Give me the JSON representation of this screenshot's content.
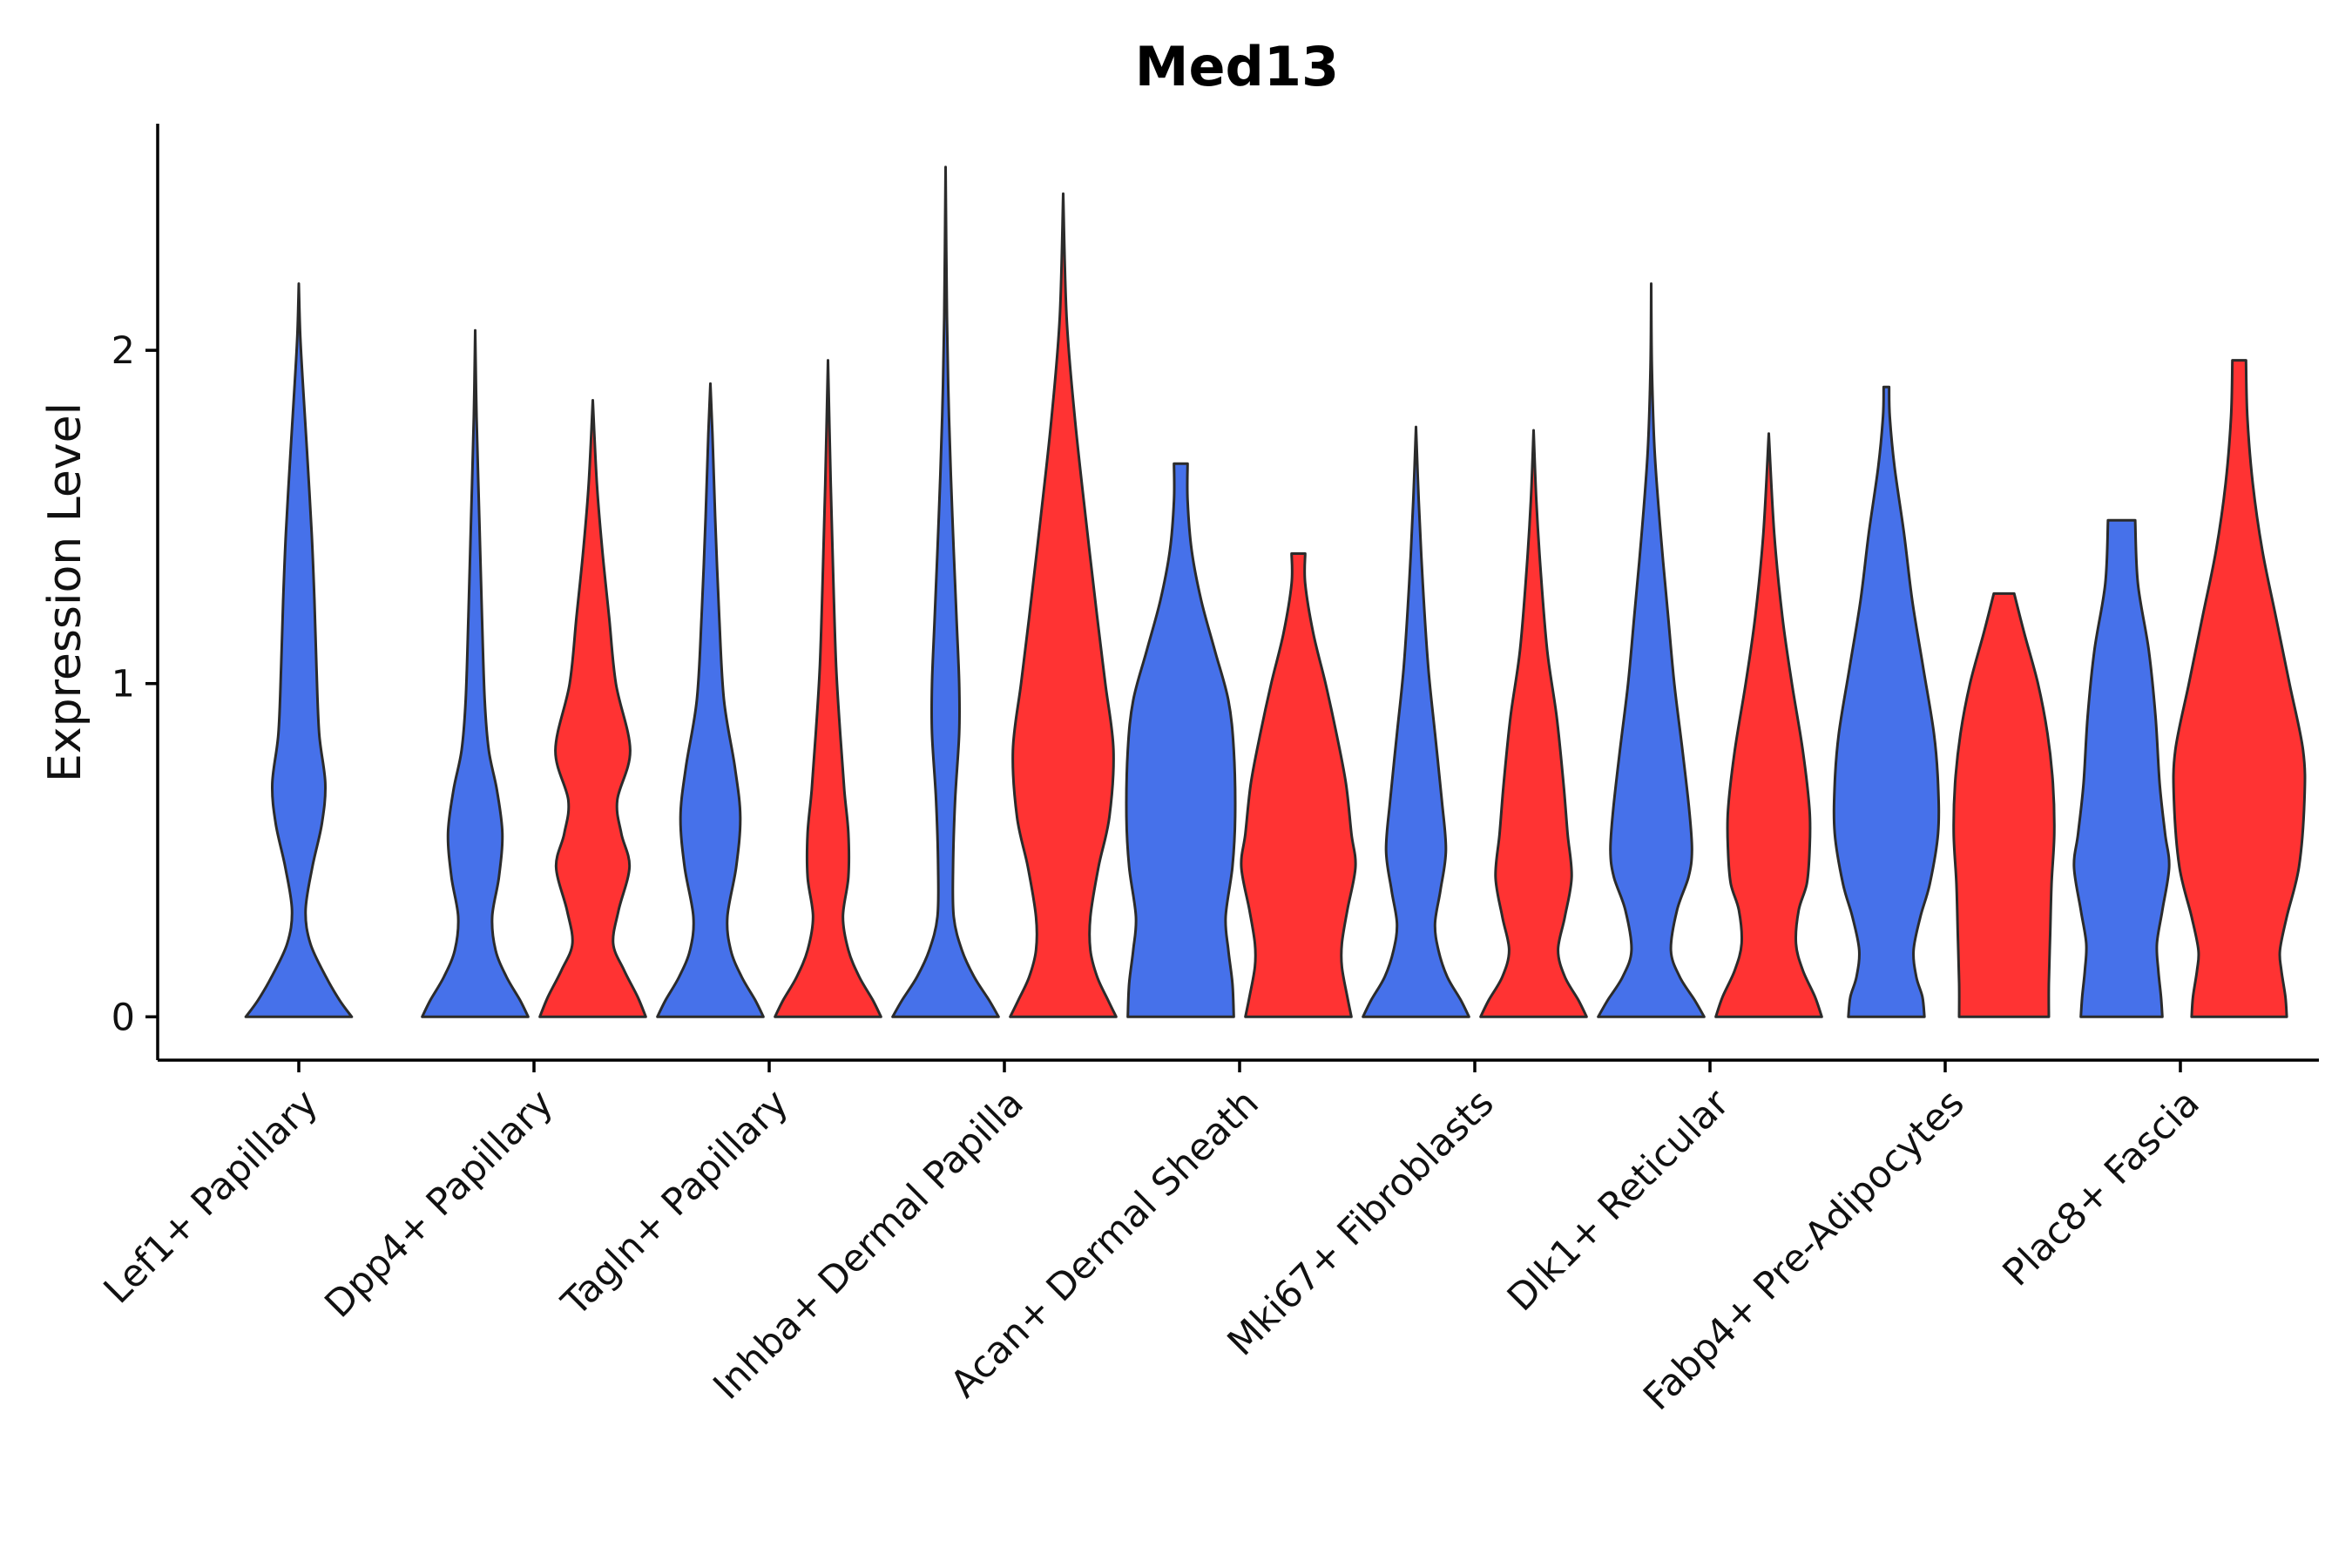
{
  "chart_data": {
    "type": "violin",
    "title": "Med13",
    "xlabel": "",
    "ylabel": "Expression Level",
    "ylim": [
      -0.13,
      2.68
    ],
    "yticks": [
      0,
      1,
      2
    ],
    "grid": false,
    "legend": "none",
    "colors": {
      "group_a": "#4671ea",
      "group_b": "#ff3333",
      "outline": "#2b2b2b"
    },
    "categories": [
      "Lef1+ Papillary",
      "Dpp4+ Papillary",
      "Tagln+ Papillary",
      "Inhba+ Dermal Papilla",
      "Acan+ Dermal Sheath",
      "Mki67+ Fibroblasts",
      "Dlk1+ Reticular",
      "Fabp4+ Pre-Adipocytes",
      "Plac8+ Fascia"
    ],
    "violins": [
      {
        "category": "Lef1+ Papillary",
        "group": "A",
        "offset": 0,
        "max": 2.2,
        "profile": [
          [
            0,
            0.78
          ],
          [
            0.05,
            0.6
          ],
          [
            0.12,
            0.4
          ],
          [
            0.22,
            0.17
          ],
          [
            0.32,
            0.1
          ],
          [
            0.45,
            0.2
          ],
          [
            0.58,
            0.34
          ],
          [
            0.7,
            0.39
          ],
          [
            0.85,
            0.3
          ],
          [
            1.05,
            0.26
          ],
          [
            1.25,
            0.23
          ],
          [
            1.45,
            0.19
          ],
          [
            1.7,
            0.12
          ],
          [
            1.9,
            0.06
          ],
          [
            2.05,
            0.02
          ],
          [
            2.2,
            0.0
          ]
        ]
      },
      {
        "category": "Dpp4+ Papillary",
        "group": "A",
        "offset": -0.25,
        "max": 2.06,
        "profile": [
          [
            0,
            0.78
          ],
          [
            0.05,
            0.66
          ],
          [
            0.12,
            0.46
          ],
          [
            0.2,
            0.3
          ],
          [
            0.3,
            0.25
          ],
          [
            0.42,
            0.35
          ],
          [
            0.55,
            0.4
          ],
          [
            0.68,
            0.32
          ],
          [
            0.8,
            0.2
          ],
          [
            0.95,
            0.14
          ],
          [
            1.2,
            0.1
          ],
          [
            1.5,
            0.06
          ],
          [
            1.8,
            0.02
          ],
          [
            2.06,
            0.0
          ]
        ]
      },
      {
        "category": "Dpp4+ Papillary",
        "group": "B",
        "offset": 0.25,
        "max": 1.85,
        "profile": [
          [
            0,
            0.78
          ],
          [
            0.06,
            0.66
          ],
          [
            0.14,
            0.46
          ],
          [
            0.22,
            0.3
          ],
          [
            0.32,
            0.38
          ],
          [
            0.45,
            0.54
          ],
          [
            0.55,
            0.42
          ],
          [
            0.65,
            0.36
          ],
          [
            0.8,
            0.55
          ],
          [
            1.0,
            0.34
          ],
          [
            1.2,
            0.24
          ],
          [
            1.4,
            0.14
          ],
          [
            1.6,
            0.06
          ],
          [
            1.85,
            0.0
          ]
        ]
      },
      {
        "category": "Tagln+ Papillary",
        "group": "A",
        "offset": -0.25,
        "max": 1.9,
        "profile": [
          [
            0,
            0.78
          ],
          [
            0.05,
            0.66
          ],
          [
            0.12,
            0.46
          ],
          [
            0.2,
            0.3
          ],
          [
            0.3,
            0.25
          ],
          [
            0.45,
            0.38
          ],
          [
            0.6,
            0.44
          ],
          [
            0.75,
            0.36
          ],
          [
            0.95,
            0.2
          ],
          [
            1.2,
            0.13
          ],
          [
            1.5,
            0.07
          ],
          [
            1.75,
            0.03
          ],
          [
            1.9,
            0.0
          ]
        ]
      },
      {
        "category": "Tagln+ Papillary",
        "group": "B",
        "offset": 0.25,
        "max": 1.97,
        "profile": [
          [
            0,
            0.78
          ],
          [
            0.05,
            0.66
          ],
          [
            0.12,
            0.46
          ],
          [
            0.2,
            0.3
          ],
          [
            0.3,
            0.22
          ],
          [
            0.42,
            0.3
          ],
          [
            0.55,
            0.3
          ],
          [
            0.68,
            0.24
          ],
          [
            0.85,
            0.18
          ],
          [
            1.05,
            0.12
          ],
          [
            1.3,
            0.08
          ],
          [
            1.6,
            0.04
          ],
          [
            1.97,
            0.0
          ]
        ]
      },
      {
        "category": "Inhba+ Dermal Papilla",
        "group": "A",
        "offset": -0.25,
        "max": 2.55,
        "profile": [
          [
            0,
            0.78
          ],
          [
            0.05,
            0.64
          ],
          [
            0.12,
            0.42
          ],
          [
            0.2,
            0.24
          ],
          [
            0.3,
            0.12
          ],
          [
            0.45,
            0.11
          ],
          [
            0.65,
            0.14
          ],
          [
            0.85,
            0.2
          ],
          [
            1.0,
            0.2
          ],
          [
            1.2,
            0.16
          ],
          [
            1.5,
            0.1
          ],
          [
            1.8,
            0.05
          ],
          [
            2.1,
            0.02
          ],
          [
            2.55,
            0.0
          ]
        ]
      },
      {
        "category": "Inhba+ Dermal Papilla",
        "group": "B",
        "offset": 0.25,
        "max": 2.47,
        "profile": [
          [
            0,
            0.78
          ],
          [
            0.05,
            0.66
          ],
          [
            0.12,
            0.5
          ],
          [
            0.2,
            0.4
          ],
          [
            0.3,
            0.4
          ],
          [
            0.45,
            0.52
          ],
          [
            0.6,
            0.68
          ],
          [
            0.8,
            0.74
          ],
          [
            1.0,
            0.62
          ],
          [
            1.2,
            0.5
          ],
          [
            1.5,
            0.33
          ],
          [
            1.8,
            0.17
          ],
          [
            2.1,
            0.05
          ],
          [
            2.47,
            0.0
          ]
        ]
      },
      {
        "category": "Acan+ Dermal Sheath",
        "group": "A",
        "offset": -0.25,
        "max": 1.66,
        "profile": [
          [
            0,
            0.78
          ],
          [
            0.1,
            0.76
          ],
          [
            0.2,
            0.7
          ],
          [
            0.3,
            0.66
          ],
          [
            0.45,
            0.76
          ],
          [
            0.6,
            0.8
          ],
          [
            0.8,
            0.78
          ],
          [
            0.95,
            0.7
          ],
          [
            1.1,
            0.5
          ],
          [
            1.25,
            0.3
          ],
          [
            1.4,
            0.16
          ],
          [
            1.55,
            0.1
          ],
          [
            1.66,
            0.1
          ]
        ]
      },
      {
        "category": "Acan+ Dermal Sheath",
        "group": "B",
        "offset": 0.25,
        "max": 1.39,
        "profile": [
          [
            0,
            0.78
          ],
          [
            0.06,
            0.72
          ],
          [
            0.15,
            0.64
          ],
          [
            0.22,
            0.64
          ],
          [
            0.32,
            0.72
          ],
          [
            0.45,
            0.84
          ],
          [
            0.55,
            0.78
          ],
          [
            0.7,
            0.7
          ],
          [
            0.85,
            0.56
          ],
          [
            1.0,
            0.4
          ],
          [
            1.15,
            0.22
          ],
          [
            1.3,
            0.1
          ],
          [
            1.39,
            0.1
          ]
        ]
      },
      {
        "category": "Mki67+ Fibroblasts",
        "group": "A",
        "offset": -0.25,
        "max": 1.77,
        "profile": [
          [
            0,
            0.78
          ],
          [
            0.05,
            0.66
          ],
          [
            0.12,
            0.46
          ],
          [
            0.2,
            0.33
          ],
          [
            0.28,
            0.28
          ],
          [
            0.38,
            0.36
          ],
          [
            0.5,
            0.44
          ],
          [
            0.65,
            0.38
          ],
          [
            0.85,
            0.28
          ],
          [
            1.05,
            0.18
          ],
          [
            1.3,
            0.1
          ],
          [
            1.55,
            0.04
          ],
          [
            1.77,
            0.0
          ]
        ]
      },
      {
        "category": "Mki67+ Fibroblasts",
        "group": "B",
        "offset": 0.25,
        "max": 1.76,
        "profile": [
          [
            0,
            0.78
          ],
          [
            0.05,
            0.66
          ],
          [
            0.12,
            0.46
          ],
          [
            0.2,
            0.36
          ],
          [
            0.3,
            0.46
          ],
          [
            0.42,
            0.56
          ],
          [
            0.55,
            0.5
          ],
          [
            0.7,
            0.44
          ],
          [
            0.9,
            0.34
          ],
          [
            1.1,
            0.2
          ],
          [
            1.35,
            0.1
          ],
          [
            1.55,
            0.04
          ],
          [
            1.76,
            0.0
          ]
        ]
      },
      {
        "category": "Dlk1+ Reticular",
        "group": "A",
        "offset": -0.25,
        "max": 2.2,
        "profile": [
          [
            0,
            0.78
          ],
          [
            0.05,
            0.64
          ],
          [
            0.12,
            0.42
          ],
          [
            0.2,
            0.29
          ],
          [
            0.32,
            0.38
          ],
          [
            0.42,
            0.55
          ],
          [
            0.5,
            0.6
          ],
          [
            0.62,
            0.56
          ],
          [
            0.8,
            0.46
          ],
          [
            1.0,
            0.34
          ],
          [
            1.2,
            0.25
          ],
          [
            1.45,
            0.14
          ],
          [
            1.7,
            0.05
          ],
          [
            1.95,
            0.01
          ],
          [
            2.2,
            0.0
          ]
        ]
      },
      {
        "category": "Dlk1+ Reticular",
        "group": "B",
        "offset": 0.25,
        "max": 1.75,
        "profile": [
          [
            0,
            0.78
          ],
          [
            0.06,
            0.68
          ],
          [
            0.14,
            0.5
          ],
          [
            0.22,
            0.4
          ],
          [
            0.32,
            0.44
          ],
          [
            0.4,
            0.56
          ],
          [
            0.5,
            0.6
          ],
          [
            0.62,
            0.6
          ],
          [
            0.8,
            0.5
          ],
          [
            1.0,
            0.34
          ],
          [
            1.2,
            0.2
          ],
          [
            1.45,
            0.08
          ],
          [
            1.75,
            0.0
          ]
        ]
      },
      {
        "category": "Fabp4+ Pre-Adipocytes",
        "group": "A",
        "offset": -0.25,
        "max": 1.89,
        "profile": [
          [
            0,
            0.56
          ],
          [
            0.06,
            0.53
          ],
          [
            0.12,
            0.44
          ],
          [
            0.2,
            0.4
          ],
          [
            0.3,
            0.5
          ],
          [
            0.4,
            0.64
          ],
          [
            0.55,
            0.76
          ],
          [
            0.7,
            0.76
          ],
          [
            0.85,
            0.7
          ],
          [
            1.05,
            0.54
          ],
          [
            1.25,
            0.38
          ],
          [
            1.45,
            0.26
          ],
          [
            1.65,
            0.12
          ],
          [
            1.8,
            0.05
          ],
          [
            1.89,
            0.04
          ]
        ]
      },
      {
        "category": "Fabp4+ Pre-Adipocytes",
        "group": "B",
        "offset": 0.25,
        "max": 1.27,
        "profile": [
          [
            0,
            0.66
          ],
          [
            0.1,
            0.66
          ],
          [
            0.25,
            0.68
          ],
          [
            0.4,
            0.7
          ],
          [
            0.55,
            0.74
          ],
          [
            0.7,
            0.72
          ],
          [
            0.85,
            0.64
          ],
          [
            1.0,
            0.5
          ],
          [
            1.15,
            0.3
          ],
          [
            1.27,
            0.15
          ]
        ]
      },
      {
        "category": "Plac8+ Fascia",
        "group": "A",
        "offset": -0.25,
        "max": 1.49,
        "profile": [
          [
            0,
            0.6
          ],
          [
            0.06,
            0.58
          ],
          [
            0.14,
            0.54
          ],
          [
            0.22,
            0.52
          ],
          [
            0.32,
            0.6
          ],
          [
            0.45,
            0.7
          ],
          [
            0.55,
            0.64
          ],
          [
            0.7,
            0.56
          ],
          [
            0.9,
            0.5
          ],
          [
            1.1,
            0.4
          ],
          [
            1.3,
            0.24
          ],
          [
            1.49,
            0.2
          ]
        ]
      },
      {
        "category": "Plac8+ Fascia",
        "group": "B",
        "offset": 0.25,
        "max": 1.97,
        "profile": [
          [
            0,
            0.7
          ],
          [
            0.06,
            0.68
          ],
          [
            0.14,
            0.62
          ],
          [
            0.2,
            0.6
          ],
          [
            0.3,
            0.7
          ],
          [
            0.45,
            0.88
          ],
          [
            0.65,
            0.96
          ],
          [
            0.8,
            0.94
          ],
          [
            1.0,
            0.74
          ],
          [
            1.2,
            0.54
          ],
          [
            1.4,
            0.34
          ],
          [
            1.6,
            0.2
          ],
          [
            1.8,
            0.12
          ],
          [
            1.97,
            0.1
          ]
        ]
      }
    ]
  }
}
